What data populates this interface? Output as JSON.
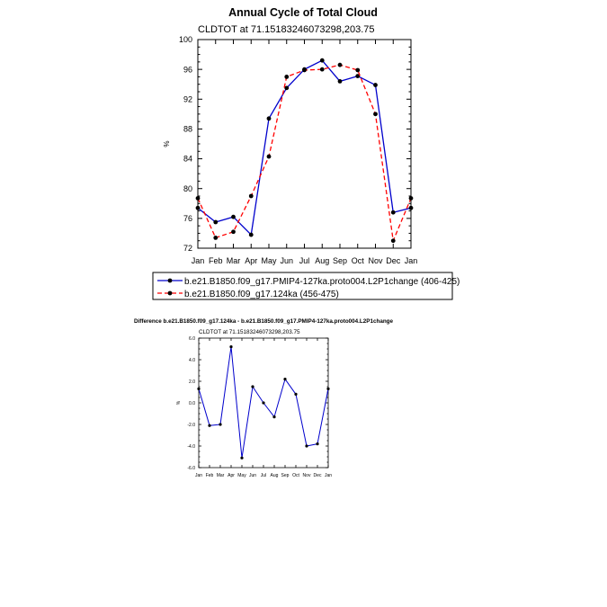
{
  "chart_data": [
    {
      "type": "line",
      "title": "Annual Cycle of Total Cloud",
      "subtitle": "CLDTOT at 71.15183246073298,203.75",
      "ylabel": "%",
      "xlabel": "",
      "categories": [
        "Jan",
        "Feb",
        "Mar",
        "Apr",
        "May",
        "Jun",
        "Jul",
        "Aug",
        "Sep",
        "Oct",
        "Nov",
        "Dec",
        "Jan"
      ],
      "ylim": [
        72,
        100
      ],
      "yticks": [
        "72",
        "76",
        "80",
        "84",
        "88",
        "92",
        "96",
        "100"
      ],
      "grid": false,
      "legend": "bottom",
      "series": [
        {
          "name": "b.e21.B1850.f09_g17.PMIP4-127ka.proto004.L2P1change (406-425)",
          "color": "#0000cc",
          "style": "solid",
          "values": [
            77.4,
            75.5,
            76.2,
            73.8,
            89.4,
            93.5,
            96.0,
            97.2,
            94.4,
            95.1,
            93.9,
            76.8,
            77.4
          ]
        },
        {
          "name": "b.e21.B1850.f09_g17.124ka (456-475)",
          "color": "#ff0000",
          "style": "dashed",
          "values": [
            78.7,
            73.4,
            74.2,
            79.0,
            84.3,
            95.0,
            95.9,
            96.0,
            96.6,
            95.9,
            90.0,
            73.0,
            78.7
          ]
        }
      ]
    },
    {
      "type": "line",
      "title": "Difference b.e21.B1850.f09_g17.124ka - b.e21.B1850.f09_g17.PMIP4-127ka.proto004.L2P1change",
      "subtitle": "CLDTOT at 71.15183246073298,203.75",
      "ylabel": "%",
      "xlabel": "",
      "categories": [
        "Jan",
        "Feb",
        "Mar",
        "Apr",
        "May",
        "Jun",
        "Jul",
        "Aug",
        "Sep",
        "Oct",
        "Nov",
        "Dec",
        "Jan"
      ],
      "ylim": [
        -6.0,
        6.0
      ],
      "yticks": [
        "-6.0",
        "-4.0",
        "-2.0",
        "0.0",
        "2.0",
        "4.0",
        "6.0"
      ],
      "grid": false,
      "series": [
        {
          "color": "#0000cc",
          "style": "solid",
          "values": [
            1.3,
            -2.1,
            -2.0,
            5.2,
            -5.1,
            1.5,
            0.0,
            -1.3,
            2.2,
            0.8,
            -4.0,
            -3.8,
            1.3
          ]
        }
      ]
    }
  ]
}
